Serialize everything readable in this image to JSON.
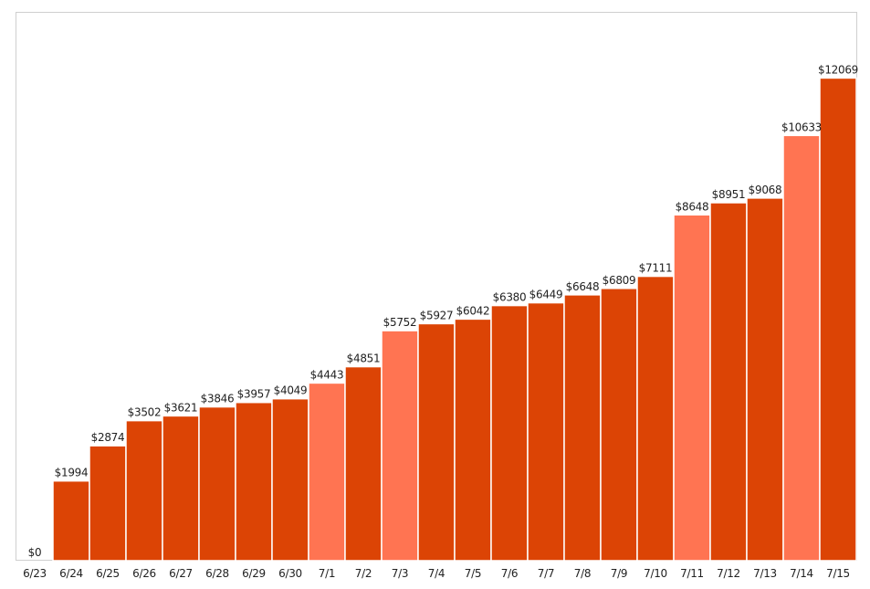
{
  "chart_data": {
    "type": "bar",
    "title": "",
    "xlabel": "",
    "ylabel": "",
    "categories": [
      "6/23",
      "6/24",
      "6/25",
      "6/26",
      "6/27",
      "6/28",
      "6/29",
      "6/30",
      "7/1",
      "7/2",
      "7/3",
      "7/4",
      "7/5",
      "7/6",
      "7/7",
      "7/8",
      "7/9",
      "7/10",
      "7/11",
      "7/12",
      "7/13",
      "7/14",
      "7/15"
    ],
    "values": [
      0,
      1994,
      2874,
      3502,
      3621,
      3846,
      3957,
      4049,
      4443,
      4851,
      5752,
      5927,
      6042,
      6380,
      6449,
      6648,
      6809,
      7111,
      8648,
      8951,
      9068,
      10633,
      12069
    ],
    "value_labels": [
      "$0",
      "$1994",
      "$2874",
      "$3502",
      "$3621",
      "$3846",
      "$3957",
      "$4049",
      "$4443",
      "$4851",
      "$5752",
      "$5927",
      "$6042",
      "$6380",
      "$6449",
      "$6648",
      "$6809",
      "$7111",
      "$8648",
      "$8951",
      "$9068",
      "$10633",
      "$12069"
    ],
    "highlighted": [
      false,
      false,
      false,
      false,
      false,
      false,
      false,
      false,
      true,
      false,
      true,
      false,
      false,
      false,
      false,
      false,
      false,
      false,
      true,
      false,
      false,
      true,
      false
    ],
    "ylim": [
      0,
      13700
    ],
    "grid": false,
    "legend": "none",
    "colors": {
      "bar": "#dc4405",
      "highlight": "#ff7452",
      "frame": "#cfcfcf",
      "text": "#222222"
    }
  }
}
